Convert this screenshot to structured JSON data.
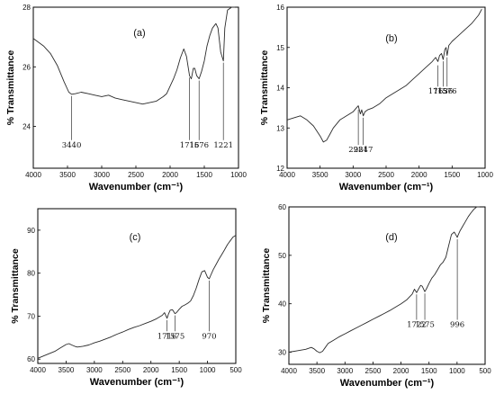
{
  "chart_data": [
    {
      "type": "line",
      "panel_label": "(a)",
      "xlabel": "Wavenumber (cm⁻¹)",
      "ylabel": "% Transmittance",
      "xlim": [
        4000,
        1000
      ],
      "ylim": [
        22.6,
        28
      ],
      "x_ticks": [
        4000,
        3500,
        3000,
        2500,
        2000,
        1500,
        1000
      ],
      "y_ticks": [
        24,
        26,
        28
      ],
      "grid": false,
      "series": [
        {
          "x": [
            4000,
            3850,
            3750,
            3650,
            3550,
            3480,
            3440,
            3380,
            3300,
            3200,
            3100,
            3000,
            2900,
            2800,
            2700,
            2600,
            2500,
            2400,
            2300,
            2200,
            2100,
            2050,
            2000,
            1950,
            1900,
            1850,
            1800,
            1760,
            1716,
            1690,
            1660,
            1640,
            1610,
            1576,
            1540,
            1500,
            1460,
            1420,
            1380,
            1330,
            1300,
            1260,
            1221,
            1200,
            1160,
            1100,
            1050
          ],
          "y": [
            26.95,
            26.7,
            26.45,
            26.05,
            25.5,
            25.15,
            25.08,
            25.1,
            25.15,
            25.1,
            25.05,
            25.0,
            25.05,
            24.95,
            24.9,
            24.85,
            24.8,
            24.75,
            24.8,
            24.85,
            25.0,
            25.1,
            25.35,
            25.6,
            25.9,
            26.3,
            26.6,
            26.35,
            25.7,
            25.6,
            25.95,
            25.95,
            25.7,
            25.6,
            25.85,
            26.2,
            26.7,
            27.05,
            27.3,
            27.45,
            27.3,
            26.5,
            26.2,
            27.3,
            27.9,
            28.0,
            28.0
          ]
        }
      ],
      "annotations": [
        {
          "label": "3440",
          "x": 3440,
          "y_point": 25.08,
          "y_text": 23.3
        },
        {
          "label": "1716",
          "x": 1716,
          "y_point": 25.7,
          "y_text": 23.3
        },
        {
          "label": "1576",
          "x": 1576,
          "y_point": 25.6,
          "y_text": 23.3
        },
        {
          "label": "1221",
          "x": 1221,
          "y_point": 26.2,
          "y_text": 23.3
        }
      ]
    },
    {
      "type": "line",
      "panel_label": "(b)",
      "xlabel": "Wavenumber (cm⁻¹)",
      "ylabel": "% Transmittance",
      "xlim": [
        4000,
        1000
      ],
      "ylim": [
        12,
        16
      ],
      "x_ticks": [
        4000,
        3500,
        3000,
        2500,
        2000,
        1500,
        1000
      ],
      "y_ticks": [
        12,
        13,
        14,
        15,
        16
      ],
      "grid": false,
      "series": [
        {
          "x": [
            4000,
            3900,
            3800,
            3700,
            3600,
            3500,
            3450,
            3400,
            3350,
            3300,
            3200,
            3100,
            3000,
            2950,
            2921,
            2890,
            2870,
            2847,
            2820,
            2780,
            2700,
            2600,
            2500,
            2400,
            2300,
            2200,
            2100,
            2000,
            1900,
            1800,
            1750,
            1715,
            1690,
            1660,
            1636,
            1610,
            1590,
            1576,
            1550,
            1500,
            1400,
            1300,
            1200,
            1100,
            1050
          ],
          "y": [
            13.2,
            13.25,
            13.3,
            13.2,
            13.05,
            12.8,
            12.65,
            12.7,
            12.85,
            13.0,
            13.2,
            13.3,
            13.4,
            13.5,
            13.55,
            13.35,
            13.45,
            13.3,
            13.4,
            13.45,
            13.5,
            13.6,
            13.75,
            13.85,
            13.95,
            14.05,
            14.2,
            14.35,
            14.5,
            14.65,
            14.75,
            14.65,
            14.8,
            14.85,
            14.7,
            14.95,
            15.0,
            14.8,
            15.05,
            15.15,
            15.3,
            15.45,
            15.6,
            15.8,
            15.95
          ]
        }
      ],
      "annotations": [
        {
          "label": "2921",
          "x": 2921,
          "y_point": 13.5,
          "y_text": 12.4
        },
        {
          "label": "2847",
          "x": 2847,
          "y_point": 13.3,
          "y_text": 12.4
        },
        {
          "label": "1715",
          "x": 1715,
          "y_point": 14.6,
          "y_text": 13.85
        },
        {
          "label": "1636",
          "x": 1636,
          "y_point": 14.7,
          "y_text": 13.85
        },
        {
          "label": "1576",
          "x": 1576,
          "y_point": 14.8,
          "y_text": 13.85
        }
      ]
    },
    {
      "type": "line",
      "panel_label": "(c)",
      "xlabel": "Wavenumber (cm⁻¹)",
      "ylabel": "% Transmittance",
      "xlim": [
        4000,
        500
      ],
      "ylim": [
        59,
        95
      ],
      "x_ticks": [
        4000,
        3500,
        3000,
        2500,
        2000,
        1500,
        1000,
        500
      ],
      "y_ticks": [
        60,
        70,
        80,
        90
      ],
      "grid": false,
      "series": [
        {
          "x": [
            4000,
            3850,
            3700,
            3600,
            3500,
            3450,
            3400,
            3350,
            3300,
            3200,
            3100,
            3000,
            2900,
            2800,
            2700,
            2600,
            2500,
            2400,
            2300,
            2200,
            2100,
            2000,
            1900,
            1800,
            1760,
            1716,
            1690,
            1660,
            1620,
            1575,
            1550,
            1500,
            1450,
            1400,
            1350,
            1300,
            1250,
            1200,
            1150,
            1100,
            1050,
            1000,
            970,
            950,
            900,
            850,
            800,
            750,
            700,
            650,
            600,
            550,
            500
          ],
          "y": [
            60.2,
            61.0,
            61.8,
            62.6,
            63.4,
            63.6,
            63.3,
            63.0,
            62.8,
            63.0,
            63.3,
            63.8,
            64.2,
            64.7,
            65.2,
            65.8,
            66.3,
            66.9,
            67.4,
            67.8,
            68.3,
            68.8,
            69.4,
            70.2,
            70.8,
            69.5,
            70.5,
            71.4,
            71.5,
            70.6,
            70.8,
            71.6,
            72.3,
            72.6,
            73.0,
            73.5,
            74.8,
            76.5,
            78.5,
            80.3,
            80.6,
            79.0,
            78.7,
            79.3,
            80.8,
            82.0,
            83.2,
            84.3,
            85.4,
            86.6,
            87.5,
            88.4,
            88.8
          ]
        }
      ],
      "annotations": [
        {
          "label": "1716",
          "x": 1716,
          "y_point": 69.5,
          "y_text": 64.8
        },
        {
          "label": "1575",
          "x": 1575,
          "y_point": 70.6,
          "y_text": 64.8
        },
        {
          "label": "970",
          "x": 970,
          "y_point": 78.7,
          "y_text": 64.8
        }
      ]
    },
    {
      "type": "line",
      "panel_label": "(d)",
      "xlabel": "Wavenumber (cm⁻¹)",
      "ylabel": "% Transmittance",
      "xlim": [
        4000,
        500
      ],
      "ylim": [
        27.5,
        60
      ],
      "x_ticks": [
        4000,
        3500,
        3000,
        2500,
        2000,
        1500,
        1000,
        500
      ],
      "y_ticks": [
        30,
        40,
        50,
        60
      ],
      "grid": false,
      "series": [
        {
          "x": [
            4000,
            3850,
            3700,
            3600,
            3550,
            3500,
            3450,
            3400,
            3350,
            3300,
            3200,
            3100,
            3000,
            2900,
            2800,
            2700,
            2600,
            2500,
            2400,
            2300,
            2200,
            2100,
            2000,
            1900,
            1800,
            1760,
            1722,
            1690,
            1650,
            1620,
            1575,
            1550,
            1500,
            1450,
            1400,
            1350,
            1300,
            1250,
            1200,
            1150,
            1100,
            1050,
            1020,
            996,
            980,
            950,
            900,
            850,
            800,
            750,
            700,
            650,
            600
          ],
          "y": [
            30.0,
            30.3,
            30.6,
            31.0,
            30.7,
            30.2,
            29.9,
            30.2,
            31.0,
            31.8,
            32.5,
            33.2,
            33.8,
            34.4,
            35.0,
            35.6,
            36.2,
            36.8,
            37.4,
            38.0,
            38.6,
            39.3,
            40.0,
            40.8,
            42.0,
            43.0,
            42.3,
            43.0,
            43.8,
            43.6,
            42.5,
            43.0,
            44.2,
            45.3,
            46.0,
            47.0,
            48.0,
            48.6,
            49.6,
            52.0,
            54.3,
            54.8,
            54.2,
            53.7,
            54.2,
            55.0,
            56.0,
            57.0,
            58.0,
            58.8,
            59.5,
            60.0,
            60.0
          ]
        }
      ],
      "annotations": [
        {
          "label": "1722",
          "x": 1722,
          "y_point": 42.3,
          "y_text": 35.2
        },
        {
          "label": "1575",
          "x": 1575,
          "y_point": 42.5,
          "y_text": 35.2
        },
        {
          "label": "996",
          "x": 996,
          "y_point": 53.7,
          "y_text": 35.2
        }
      ]
    }
  ]
}
